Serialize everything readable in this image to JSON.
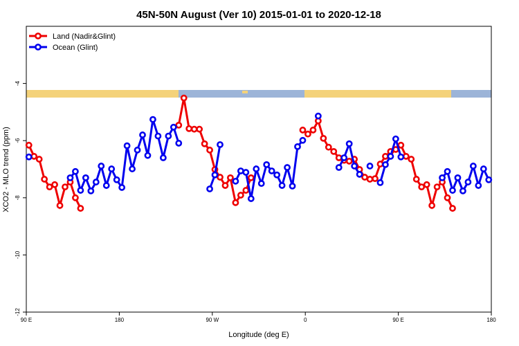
{
  "chart_data": {
    "type": "line",
    "title": "45N-50N August (Ver 10)   2015-01-01 to 2020-12-18",
    "xlabel": "Longitude (deg E)",
    "ylabel": "XCO2 - MLO trend (ppm)",
    "x": [
      92.5,
      97.5,
      102.5,
      107.5,
      112.5,
      117.5,
      122.5,
      127.5,
      132.5,
      137.5,
      142.5,
      147.5,
      152.5,
      157.5,
      162.5,
      167.5,
      172.5,
      177.5,
      182.5,
      187.5,
      192.5,
      197.5,
      202.5,
      207.5,
      212.5,
      217.5,
      222.5,
      227.5,
      232.5,
      237.5,
      242.5,
      247.5,
      252.5,
      257.5,
      262.5,
      267.5,
      272.5,
      277.5,
      282.5,
      287.5,
      292.5,
      297.5,
      302.5,
      307.5,
      312.5,
      317.5,
      322.5,
      327.5,
      332.5,
      337.5,
      342.5,
      347.5,
      352.5,
      357.5,
      362.5,
      367.5,
      372.5,
      377.5,
      382.5,
      387.5,
      392.5,
      397.5,
      402.5,
      407.5,
      412.5,
      417.5,
      422.5,
      427.5,
      432.5,
      437.5,
      442.5,
      447.5,
      452.5,
      457.5,
      462.5,
      467.5,
      472.5,
      477.5,
      482.5,
      487.5,
      492.5,
      497.5,
      502.5,
      507.5,
      512.5,
      517.5,
      522.5,
      527.5,
      532.5,
      537.5
    ],
    "series": [
      {
        "name": "Land (Nadir&Glint)",
        "color": "#ee0000",
        "values": [
          -6.16,
          -6.55,
          -6.65,
          -7.35,
          -7.62,
          -7.54,
          -8.27,
          -7.62,
          -7.45,
          -8.0,
          -8.37,
          null,
          null,
          null,
          null,
          null,
          null,
          null,
          null,
          null,
          null,
          null,
          null,
          null,
          null,
          null,
          null,
          null,
          null,
          -5.46,
          -4.51,
          -5.58,
          -5.6,
          -5.6,
          -6.11,
          -6.33,
          -7.01,
          -7.28,
          -7.57,
          -7.3,
          -8.17,
          -7.91,
          -7.74,
          -7.3,
          null,
          null,
          null,
          null,
          null,
          null,
          null,
          null,
          null,
          -5.63,
          -5.77,
          -5.63,
          -5.31,
          -5.92,
          -6.23,
          -6.38,
          -6.6,
          -6.69,
          -6.72,
          -6.65,
          -7.01,
          -7.28,
          -7.35,
          -7.33,
          -6.82,
          -6.55,
          -6.38,
          -6.31,
          -6.16,
          -6.55,
          -6.65,
          -7.35,
          -7.62,
          -7.54,
          -8.27,
          -7.62,
          -7.45,
          -8.0,
          -8.37,
          null,
          null,
          null,
          null,
          null,
          null,
          null
        ]
      },
      {
        "name": "Ocean (Glint)",
        "color": "#0000ee",
        "values": [
          -6.57,
          null,
          null,
          null,
          null,
          null,
          null,
          null,
          -7.3,
          -7.08,
          -7.74,
          -7.3,
          -7.76,
          -7.45,
          -6.89,
          -7.57,
          -6.99,
          -7.37,
          -7.64,
          -6.18,
          -6.99,
          -6.33,
          -5.8,
          -6.52,
          -5.26,
          -5.84,
          -6.6,
          -5.84,
          -5.53,
          -6.09,
          null,
          null,
          null,
          null,
          null,
          -7.69,
          -7.2,
          -6.14,
          null,
          null,
          -7.42,
          -7.06,
          -7.11,
          -8.03,
          -6.99,
          -7.5,
          -6.84,
          -7.06,
          -7.2,
          -7.57,
          -6.94,
          -7.59,
          -6.21,
          -5.99,
          null,
          null,
          -5.14,
          null,
          null,
          null,
          -6.94,
          -6.6,
          -6.11,
          -6.89,
          -7.18,
          null,
          -6.89,
          null,
          -7.47,
          -6.84,
          -6.55,
          -5.94,
          -6.57,
          null,
          null,
          null,
          null,
          null,
          null,
          null,
          -7.3,
          -7.08,
          -7.74,
          -7.3,
          -7.76,
          -7.45,
          -6.89,
          -7.57,
          -6.99,
          -7.37
        ]
      }
    ],
    "xlim": [
      90,
      540
    ],
    "xticks": [
      {
        "value": 90,
        "label": "90 E"
      },
      180,
      {
        "value": 270,
        "label": "90 W"
      },
      {
        "value": 360,
        "label": "0"
      },
      {
        "value": 450,
        "label": "90 E"
      },
      {
        "value": 540,
        "label": "180"
      }
    ],
    "ylim": [
      -12,
      -2
    ],
    "yticks": [
      -12,
      -10,
      -8,
      -6,
      -4
    ],
    "legend": "upper left"
  }
}
